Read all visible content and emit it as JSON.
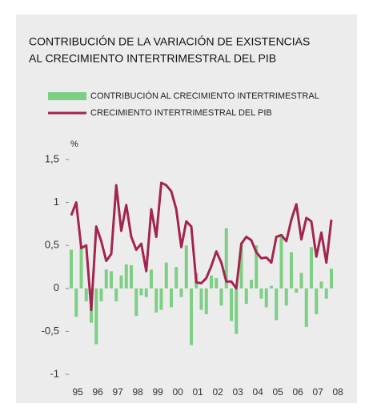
{
  "chart_data": {
    "type": "bar_line",
    "title": [
      "CONTRIBUCIÓN DE LA VARIACIÓN DE EXISTENCIAS",
      "AL CRECIMIENTO INTERTRIMESTRAL DEL PIB"
    ],
    "y_unit": "%",
    "x_labels": [
      "95",
      "96",
      "97",
      "98",
      "99",
      "00",
      "01",
      "02",
      "03",
      "04",
      "05",
      "06",
      "07",
      "08"
    ],
    "ylim": [
      -1,
      1.5
    ],
    "yticks": [
      {
        "value": 1.5,
        "label": "1,5"
      },
      1,
      {
        "value": 0.5,
        "label": "0,5"
      },
      0,
      {
        "value": -0.5,
        "label": "-0,5"
      },
      -1
    ],
    "series": [
      {
        "name": "CONTRIBUCIÓN AL CRECIMIENTO INTERTRIMESTRAL",
        "kind": "bar",
        "color": "#7dcf83",
        "values": [
          0.45,
          -0.33,
          0.48,
          -0.15,
          -0.4,
          -0.65,
          -0.15,
          0.22,
          0.2,
          -0.15,
          0.15,
          0.28,
          0.27,
          -0.32,
          -0.08,
          -0.1,
          0.22,
          -0.28,
          -0.25,
          0.3,
          -0.22,
          0.25,
          -0.1,
          0.5,
          -0.66,
          0.18,
          -0.25,
          -0.3,
          0.15,
          0.12,
          -0.2,
          0.7,
          -0.38,
          -0.53,
          0.5,
          -0.18,
          0.1,
          0.5,
          -0.12,
          -0.22,
          0.03,
          -0.37,
          0.63,
          -0.2,
          0.42,
          -0.05,
          0.18,
          -0.45,
          0.48,
          -0.3,
          0.08,
          -0.12,
          0.23
        ]
      },
      {
        "name": "CRECIMIENTO INTERTRIMESTRAL DEL PIB",
        "kind": "line",
        "color": "#a3244f",
        "values": [
          0.85,
          1.0,
          0.47,
          0.5,
          -0.25,
          0.72,
          0.55,
          0.32,
          0.4,
          1.2,
          0.67,
          0.97,
          0.6,
          0.45,
          0.52,
          0.2,
          0.92,
          0.6,
          1.23,
          1.2,
          1.13,
          0.92,
          0.48,
          0.78,
          0.72,
          0.07,
          0.06,
          0.12,
          0.26,
          0.43,
          0.3,
          0.08,
          0.08,
          0.0,
          0.52,
          0.6,
          0.56,
          0.42,
          0.35,
          0.36,
          0.3,
          0.6,
          0.62,
          0.55,
          0.8,
          0.98,
          0.57,
          0.82,
          0.78,
          0.37,
          0.65,
          0.3,
          0.8
        ]
      }
    ]
  }
}
